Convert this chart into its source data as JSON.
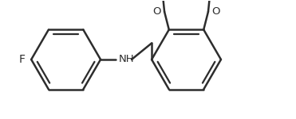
{
  "bg_color": "#ffffff",
  "line_color": "#2d2d2d",
  "text_color": "#2d2d2d",
  "lw": 1.8,
  "figsize": [
    3.71,
    1.5
  ],
  "dpi": 100,
  "F_label": "F",
  "NH_label": "NH",
  "O1_label": "O",
  "O2_label": "O"
}
